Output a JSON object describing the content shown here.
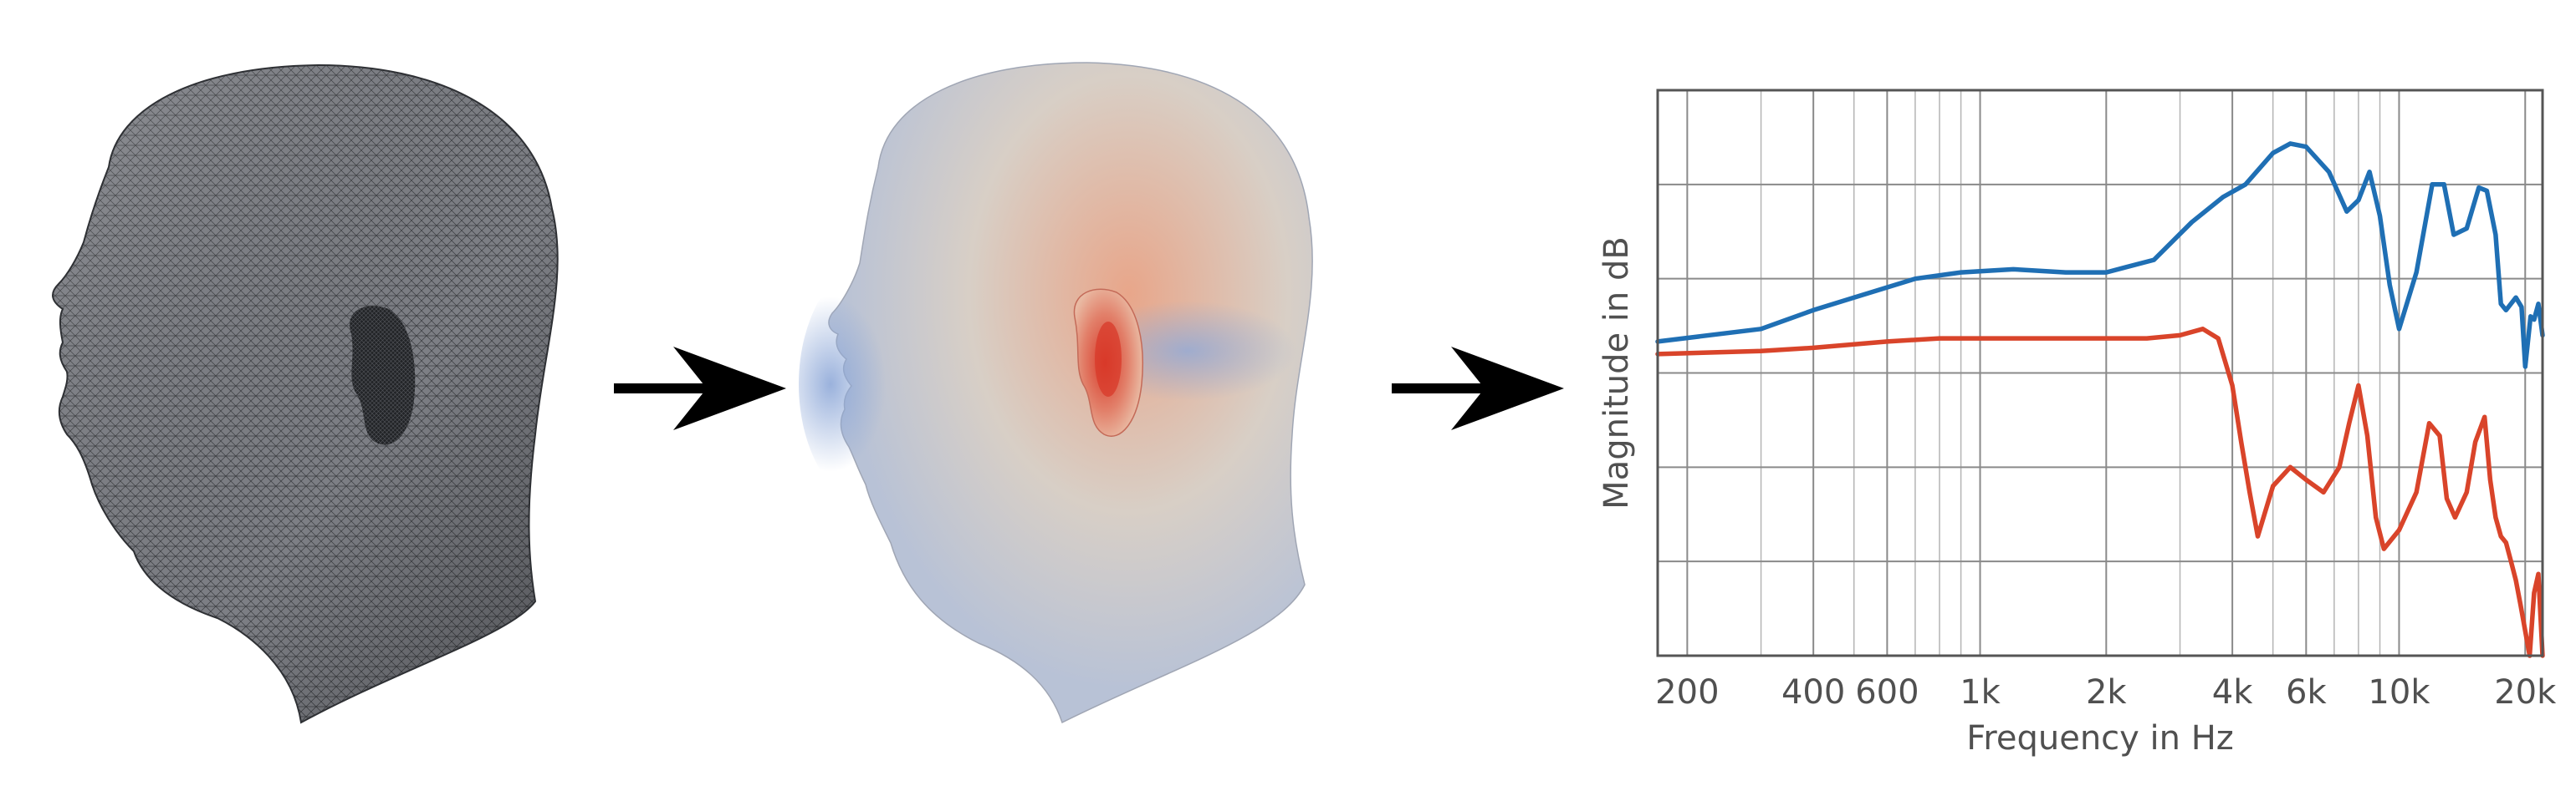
{
  "figure": {
    "steps": [
      "head-mesh",
      "simulated-pressure-field",
      "frequency-response"
    ]
  },
  "colors": {
    "mesh_face": "#7d7f85",
    "mesh_line": "#2e3034",
    "sim_base": "#d8cfc6",
    "sim_warm": "#e8a68a",
    "sim_hot": "#d83a2a",
    "sim_cool": "#8fa9d8",
    "arrow": "#000000",
    "series_blue": "#1f6fb4",
    "series_red": "#d9442a",
    "grid": "#b4b4b4",
    "frame": "#555555"
  },
  "chart_data": {
    "type": "line",
    "xscale": "log",
    "xlim": [
      170,
      22000
    ],
    "ylim": [
      -70,
      20
    ],
    "grid": true,
    "legend": "none",
    "xlabel": "Frequency in Hz",
    "ylabel": "Magnitude in dB",
    "xticks": [
      {
        "value": 200,
        "label": "200"
      },
      {
        "value": 400,
        "label": "400"
      },
      {
        "value": 600,
        "label": "600"
      },
      {
        "value": 1000,
        "label": "1k"
      },
      {
        "value": 2000,
        "label": "2k"
      },
      {
        "value": 4000,
        "label": "4k"
      },
      {
        "value": 6000,
        "label": "6k"
      },
      {
        "value": 10000,
        "label": "10k"
      },
      {
        "value": 20000,
        "label": "20k"
      }
    ],
    "minor_grid_x": [
      300,
      500,
      700,
      800,
      900,
      3000,
      5000,
      7000,
      8000,
      9000
    ],
    "major_grid_x": [
      200,
      400,
      600,
      1000,
      2000,
      4000,
      6000,
      10000,
      20000
    ],
    "grid_y": [
      -55,
      -40,
      -25,
      -10,
      5,
      20
    ],
    "series": [
      {
        "color": "#1f6fb4",
        "x": [
          170,
          300,
          400,
          500,
          700,
          900,
          1200,
          1600,
          2000,
          2600,
          3200,
          3800,
          4300,
          5000,
          5500,
          6000,
          6800,
          7500,
          8000,
          8500,
          9000,
          9500,
          10000,
          11000,
          12000,
          12800,
          13500,
          14500,
          15500,
          16200,
          17000,
          17500,
          18000,
          19000,
          19600,
          20000,
          20600,
          21000,
          21500,
          22000
        ],
        "y": [
          -20,
          -18,
          -15,
          -13,
          -10,
          -9,
          -8.5,
          -9,
          -9,
          -7,
          -1,
          3,
          5,
          10,
          11.5,
          11,
          7,
          0.7,
          2.5,
          7,
          0,
          -11,
          -18,
          -9,
          5,
          5,
          -3,
          -2,
          4.5,
          4,
          -3,
          -14,
          -15,
          -13,
          -14.5,
          -24,
          -16,
          -16.5,
          -14,
          -19
        ]
      },
      {
        "color": "#d9442a",
        "x": [
          170,
          300,
          400,
          600,
          800,
          1000,
          1500,
          2000,
          2500,
          3000,
          3400,
          3700,
          4000,
          4200,
          4400,
          4600,
          5000,
          5500,
          6000,
          6600,
          7200,
          7600,
          8000,
          8400,
          8800,
          9200,
          10000,
          11000,
          11800,
          12500,
          13000,
          13600,
          14500,
          15200,
          16000,
          16500,
          17000,
          17500,
          18000,
          18500,
          19000,
          19500,
          20500,
          21000,
          21500,
          22000
        ],
        "y": [
          -22,
          -21.5,
          -21,
          -20,
          -19.5,
          -19.5,
          -19.5,
          -19.5,
          -19.5,
          -19,
          -18,
          -19.5,
          -27,
          -36,
          -44,
          -51,
          -43,
          -40,
          -42,
          -44,
          -40,
          -33,
          -27,
          -35,
          -48,
          -53,
          -50,
          -44,
          -33,
          -35,
          -45,
          -48,
          -44,
          -36,
          -32,
          -42,
          -48,
          -51,
          -52,
          -55,
          -58,
          -62,
          -70,
          -60,
          -57,
          -70
        ]
      }
    ]
  }
}
